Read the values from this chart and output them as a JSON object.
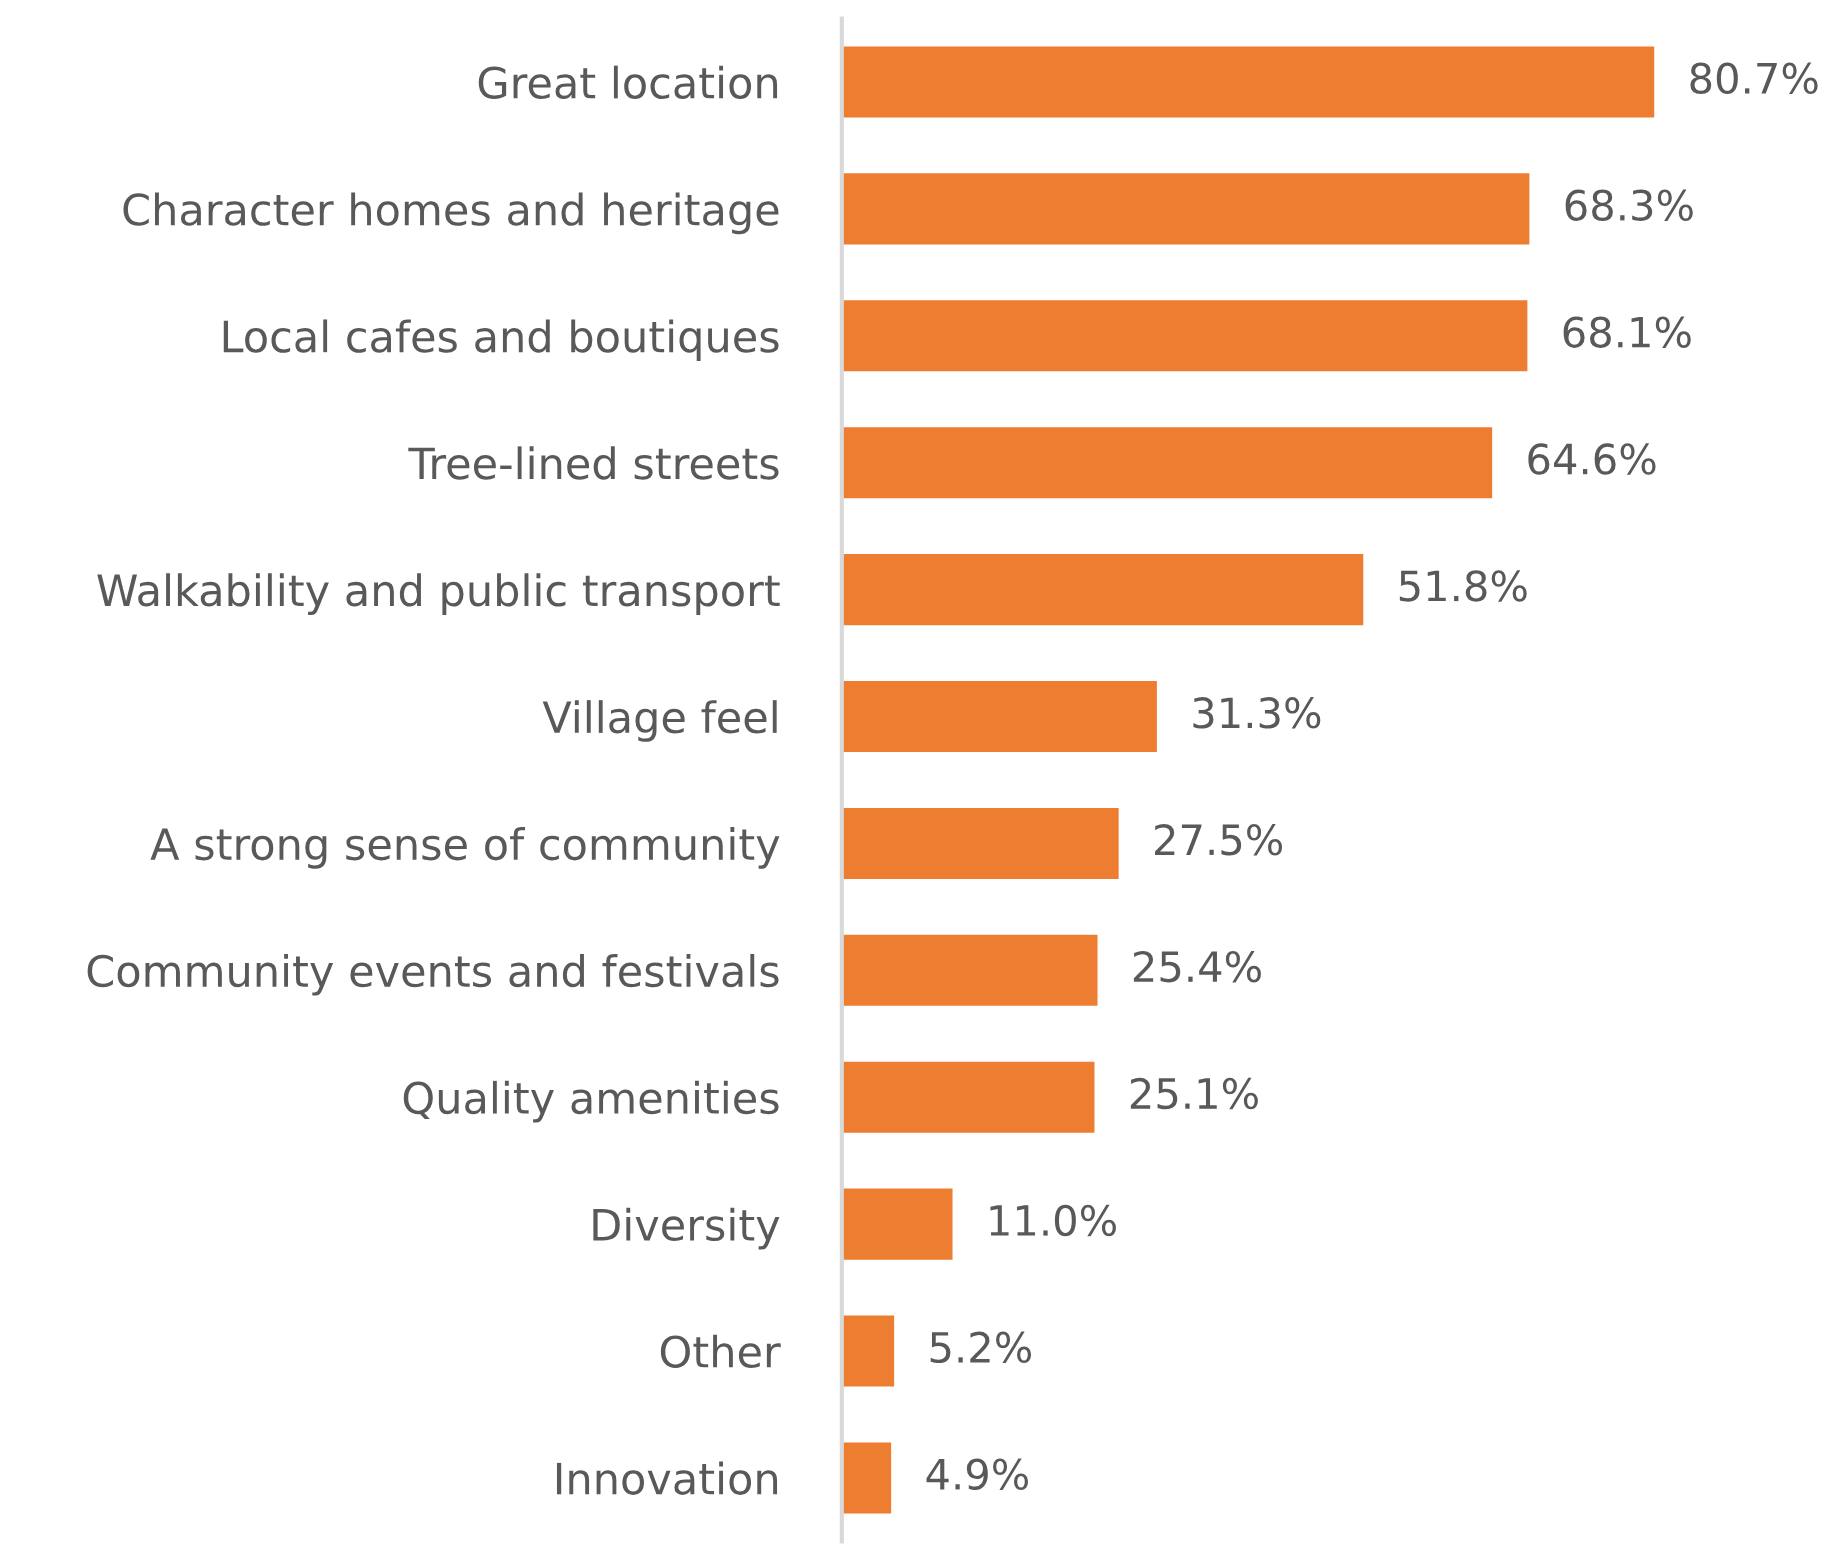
{
  "chart_data": {
    "type": "bar",
    "orientation": "horizontal",
    "categories": [
      "Great location",
      "Character homes and heritage",
      "Local cafes and boutiques",
      "Tree-lined streets",
      "Walkability and public transport",
      "Village feel",
      "A strong sense of community",
      "Community events and festivals",
      "Quality amenities",
      "Diversity",
      "Other",
      "Innovation"
    ],
    "values": [
      80.7,
      68.3,
      68.1,
      64.6,
      51.8,
      31.3,
      27.5,
      25.4,
      25.1,
      11.0,
      5.2,
      4.9
    ],
    "value_labels": [
      "80.7%",
      "68.3%",
      "68.1%",
      "64.6%",
      "51.8%",
      "31.3%",
      "27.5%",
      "25.4%",
      "25.1%",
      "11.0%",
      "5.2%",
      "4.9%"
    ],
    "color": "#ed7d31",
    "tick_labels": "y",
    "grid": false,
    "legend": false
  }
}
